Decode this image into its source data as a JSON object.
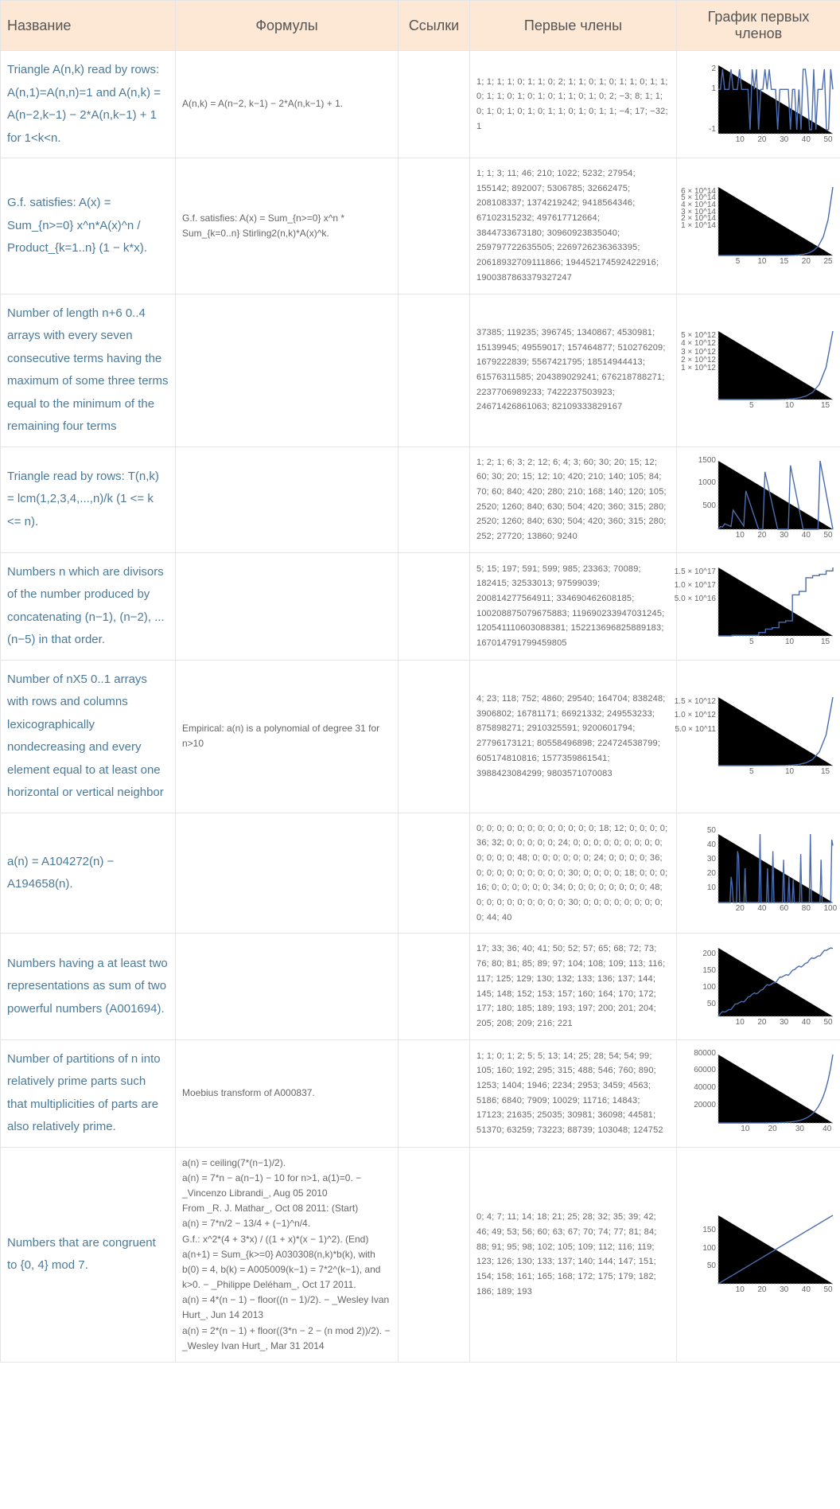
{
  "headers": {
    "name": "Название",
    "formula": "Формулы",
    "refs": "Ссылки",
    "terms": "Первые члены",
    "graph": "График первых членов"
  },
  "rows": [
    {
      "name": "Triangle A(n,k) read by rows: A(n,1)=A(n,n)=1 and A(n,k) = A(n−2,k−1) − 2*A(n,k−1) + 1 for 1<k<n.",
      "formula": "A(n,k) = A(n−2, k−1) − 2*A(n,k−1) + 1.",
      "terms": "1; 1; 1; 1; 0; 1; 1; 0; 2; 1; 1; 0; 1; 0; 1; 1; 0; 1; 1; 0; 1; 1; 0; 1; 0; 1; 0; 1; 1; 0; 1; 0; 2; −3; 8; 1; 1; 0; 1; 0; 1; 0; 1; 0; 1; 1; 0; 1; 0; 1; 1; −4; 17; −32; 1",
      "graph": {
        "xticks": [
          10,
          20,
          30,
          40,
          50
        ],
        "yticks": [
          -1,
          1,
          2
        ],
        "type": "spiky",
        "ymin": -1.2,
        "ymax": 2.2,
        "n": 55,
        "seed": 3
      }
    },
    {
      "name": "G.f. satisfies: A(x) = Sum_{n>=0} x^n*A(x)^n / Product_{k=1..n} (1 − k*x).",
      "formula": "G.f. satisfies: A(x) = Sum_{n>=0} x^n * Sum_{k=0..n} Stirling2(n,k)*A(x)^k.",
      "terms": "1; 1; 3; 11; 46; 210; 1022; 5232; 27954; 155142; 892007; 5306785; 32662475; 208108337; 1374219242; 9418564346; 67102315232; 497617712664; 3844733673180; 30960923835040; 259797722635505; 2269726236363395; 20618932709111866; 194452174592422916; 1900387863379327247",
      "graph": {
        "xticks": [
          5,
          10,
          15,
          20,
          25
        ],
        "ylabels": [
          "6 × 10^14",
          "5 × 10^14",
          "4 × 10^14",
          "3 × 10^14",
          "2 × 10^14",
          "1 × 10^14"
        ],
        "type": "exp",
        "n": 25,
        "k": 0.65
      }
    },
    {
      "name": "Number of length n+6 0..4 arrays with every seven consecutive terms having the maximum of some three terms equal to the minimum of the remaining four terms",
      "formula": "",
      "terms": "37385; 119235; 396745; 1340867; 4530981; 15139945; 49559017; 157464877; 510276209; 1679222839; 5567421795; 18514944413; 61576311585; 204389029241; 676218788271; 2237706989233; 7422237503923; 24671426861063; 82109333829167",
      "graph": {
        "xticks": [
          5,
          10,
          15
        ],
        "ylabels": [
          "5 × 10^12",
          "4 × 10^12",
          "3 × 10^12",
          "2 × 10^12",
          "1 × 10^12"
        ],
        "type": "exp",
        "n": 18,
        "k": 0.75
      }
    },
    {
      "name": "Triangle read by rows: T(n,k) = lcm(1,2,3,4,...,n)/k (1 <= k <= n).",
      "formula": "",
      "terms": "1; 2; 1; 6; 3; 2; 12; 6; 4; 3; 60; 30; 20; 15; 12; 60; 30; 20; 15; 12; 10; 420; 210; 140; 105; 84; 70; 60; 840; 420; 280; 210; 168; 140; 120; 105; 2520; 1260; 840; 630; 504; 420; 360; 315; 280; 2520; 1260; 840; 630; 504; 420; 360; 315; 280; 252; 27720; 13860; 9240",
      "graph": {
        "xticks": [
          10,
          20,
          30,
          40,
          50
        ],
        "yticks": [
          500,
          1000,
          1500
        ],
        "type": "sawtooth",
        "n": 55,
        "peaks": [
          1,
          3,
          7,
          13,
          22,
          34,
          48
        ],
        "peaksizes": [
          60,
          120,
          420,
          840,
          1260,
          1400,
          1500
        ]
      }
    },
    {
      "name": "Numbers n which are divisors of the number produced by concatenating (n−1), (n−2), ... (n−5) in that order.",
      "formula": "",
      "terms": "5; 15; 197; 591; 599; 985; 23363; 70089; 182415; 32533013; 97599039; 200814277564911; 334690462608185; 100208875079675883; 119690233947031245; 120541110603088381; 152213696825889183; 167014791799459805",
      "graph": {
        "xticks": [
          5,
          10,
          15
        ],
        "ylabels": [
          "1.5 × 10^17",
          "1.0 × 10^17",
          "5.0 × 10^16"
        ],
        "type": "step",
        "n": 18,
        "steps": [
          0,
          0,
          0.01,
          0.01,
          0.01,
          0.01,
          0.05,
          0.1,
          0.12,
          0.2,
          0.22,
          0.6,
          0.65,
          0.85,
          0.88,
          0.9,
          0.95,
          1.0
        ]
      }
    },
    {
      "name": "Number of nX5 0..1 arrays with rows and columns lexicographically nondecreasing and every element equal to at least one horizontal or vertical neighbor",
      "formula": "Empirical: a(n) is a polynomial of degree 31 for n>10",
      "terms": "4; 23; 118; 752; 4860; 29540; 164704; 838248; 3906802; 16781171; 66921332; 249553233; 875898271; 2910325591; 9200601794; 27796173121; 80558496898; 224724538799; 605174810816; 1577359861541; 3988423084299; 9803571070083",
      "graph": {
        "xticks": [
          5,
          10,
          15
        ],
        "ylabels": [
          "1.5 × 10^12",
          "1.0 × 10^12",
          "5.0 × 10^11"
        ],
        "type": "exp",
        "n": 18,
        "k": 0.8
      }
    },
    {
      "name": "a(n) = A104272(n) − A194658(n).",
      "formula": "",
      "terms": "0; 0; 0; 0; 0; 0; 0; 0; 0; 0; 0; 0; 18; 12; 0; 0; 0; 0; 36; 32; 0; 0; 0; 0; 0; 24; 0; 0; 0; 0; 0; 0; 0; 0; 0; 0; 0; 0; 0; 48; 0; 0; 0; 0; 0; 0; 24; 0; 0; 0; 0; 36; 0; 0; 0; 0; 0; 0; 0; 0; 0; 30; 0; 0; 0; 0; 18; 0; 0; 0; 16; 0; 0; 0; 0; 0; 0; 34; 0; 0; 0; 0; 0; 0; 0; 0; 48; 0; 0; 0; 0; 0; 0; 0; 0; 0; 30; 0; 0; 0; 0; 0; 0; 0; 0; 0; 44; 40",
      "graph": {
        "xticks": [
          20,
          40,
          60,
          80,
          100
        ],
        "yticks": [
          10,
          20,
          30,
          40,
          50
        ],
        "type": "sparse-spikes",
        "n": 108,
        "spikes": {
          "12": 18,
          "13": 12,
          "18": 36,
          "19": 32,
          "25": 24,
          "39": 48,
          "46": 24,
          "51": 36,
          "61": 30,
          "66": 18,
          "70": 16,
          "77": 34,
          "86": 48,
          "96": 30,
          "106": 44,
          "107": 40
        }
      }
    },
    {
      "name": "Numbers having a at least two representations as sum of two powerful numbers (A001694).",
      "formula": "",
      "terms": "17; 33; 36; 40; 41; 50; 52; 57; 65; 68; 72; 73; 76; 80; 81; 85; 89; 97; 104; 108; 109; 113; 116; 117; 125; 129; 130; 132; 133; 136; 137; 144; 145; 148; 152; 153; 157; 160; 164; 170; 172; 177; 180; 185; 189; 193; 197; 200; 201; 204; 205; 208; 209; 216; 221",
      "graph": {
        "xticks": [
          10,
          20,
          30,
          40,
          50
        ],
        "yticks": [
          50,
          100,
          150,
          200
        ],
        "type": "wobbly-linear",
        "n": 55,
        "start": 17,
        "end": 221
      }
    },
    {
      "name": "Number of partitions of n into relatively prime parts such that multiplicities of parts are also relatively prime.",
      "formula": "Moebius transform of A000837.",
      "terms": "1; 1; 0; 1; 2; 5; 5; 13; 14; 25; 28; 54; 54; 99; 105; 160; 192; 295; 315; 488; 546; 760; 890; 1253; 1404; 1946; 2234; 2953; 3459; 4563; 5186; 6840; 7909; 10029; 11716; 14843; 17123; 21635; 25035; 30981; 36098; 44581; 51370; 63259; 73223; 88739; 103048; 124752",
      "graph": {
        "xticks": [
          10,
          20,
          30,
          40
        ],
        "yticks": [
          20000,
          40000,
          60000,
          80000
        ],
        "type": "exp",
        "n": 48,
        "k": 0.24
      }
    },
    {
      "name": "Numbers that are congruent to {0, 4} mod 7.",
      "formula": "a(n) = ceiling(7*(n−1)/2).\na(n) = 7*n − a(n−1) − 10 for n>1, a(1)=0. − _Vincenzo Librandi_, Aug 05 2010\nFrom _R. J. Mathar_, Oct 08 2011: (Start)\na(n) = 7*n/2 − 13/4 + (−1)^n/4.\nG.f.: x^2*(4 + 3*x) / ((1 + x)*(x − 1)^2). (End)\na(n+1) = Sum_{k>=0} A030308(n,k)*b(k), with b(0) = 4, b(k) = A005009(k−1) = 7*2^(k−1), and k>0. − _Philippe Deléham_, Oct 17 2011.\na(n) = 4*(n − 1) − floor((n − 1)/2). − _Wesley Ivan Hurt_, Jun 14 2013\na(n) = 2*(n − 1) + floor((3*n − 2 − (n mod 2))/2). − _Wesley Ivan Hurt_, Mar 31 2014",
      "terms": "0; 4; 7; 11; 14; 18; 21; 25; 28; 32; 35; 39; 42; 46; 49; 53; 56; 60; 63; 67; 70; 74; 77; 81; 84; 88; 91; 95; 98; 102; 105; 109; 112; 116; 119; 123; 126; 130; 133; 137; 140; 144; 147; 151; 154; 158; 161; 165; 168; 172; 175; 179; 182; 186; 189; 193",
      "graph": {
        "xticks": [
          10,
          20,
          30,
          40,
          50
        ],
        "yticks": [
          50,
          100,
          150
        ],
        "type": "linear",
        "n": 56,
        "start": 0,
        "end": 193
      }
    }
  ],
  "style": {
    "header_bg": "#fce8d5",
    "name_color": "#4a7a9a",
    "series_color": "#4a6db0",
    "axis_color": "#888888",
    "border_color": "#e5e5e5"
  }
}
